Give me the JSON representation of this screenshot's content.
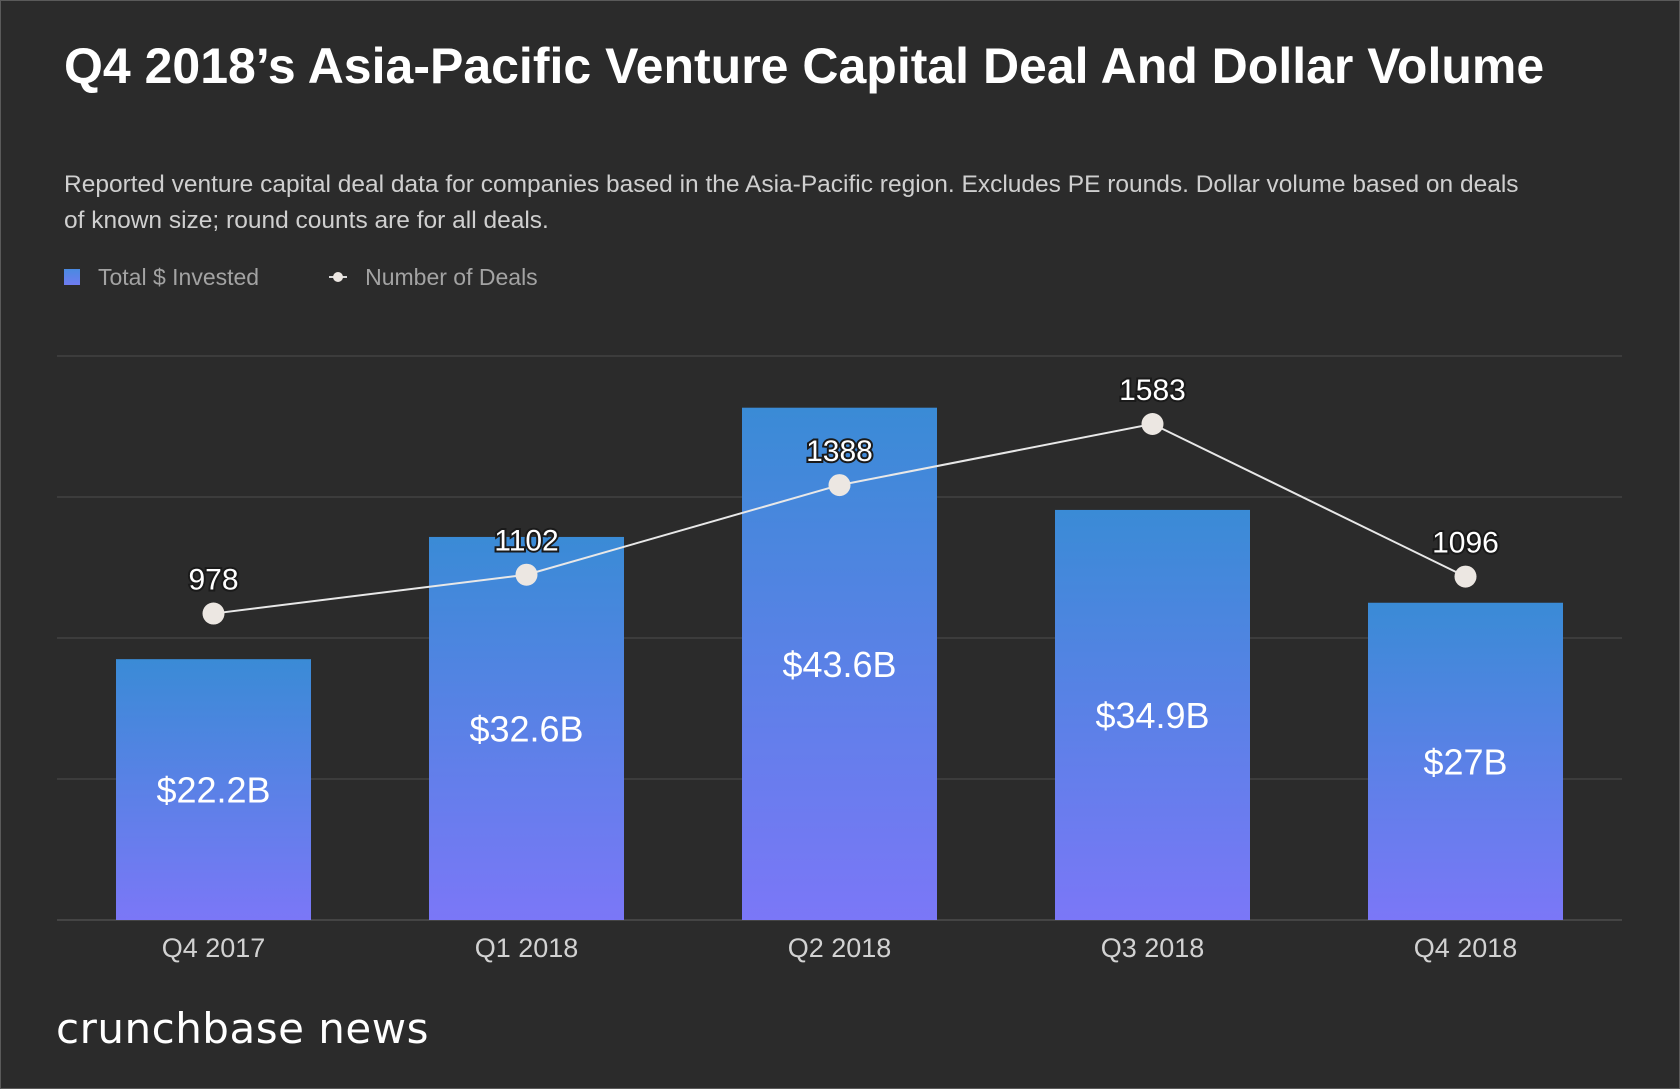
{
  "header": {
    "title": "Q4 2018’s Asia-Pacific Venture Capital Deal And Dollar Volume",
    "subtitle": "Reported venture capital deal data for companies based in the Asia-Pacific region. Excludes PE rounds. Dollar volume based on deals of known size; round counts are for all deals."
  },
  "brand": {
    "name": "crunchbase news"
  },
  "colors": {
    "background": "#2b2b2b",
    "bar_top": "#3a8bd6",
    "bar_bottom": "#7b77f7",
    "line": "#e8e8e8",
    "marker": "#ece7e2",
    "grid": "#4d4d4d",
    "text": "#ffffff",
    "muted": "#a3a3a3"
  },
  "chart_data": {
    "type": "bar",
    "categories": [
      "Q4 2017",
      "Q1 2018",
      "Q2 2018",
      "Q3 2018",
      "Q4 2018"
    ],
    "legend_position": "top-left",
    "grid": true,
    "series": [
      {
        "name": "Total $ Invested",
        "type": "bar",
        "values": [
          22.2,
          32.6,
          43.6,
          34.9,
          27
        ],
        "labels": [
          "$22.2B",
          "$32.6B",
          "$43.6B",
          "$34.9B",
          "$27B"
        ],
        "ylim": [
          0,
          48
        ]
      },
      {
        "name": "Number of Deals",
        "type": "line",
        "values": [
          978,
          1102,
          1388,
          1583,
          1096
        ],
        "labels": [
          "978",
          "1102",
          "1388",
          "1583",
          "1096"
        ],
        "ylim": [
          0,
          1800
        ]
      }
    ]
  }
}
